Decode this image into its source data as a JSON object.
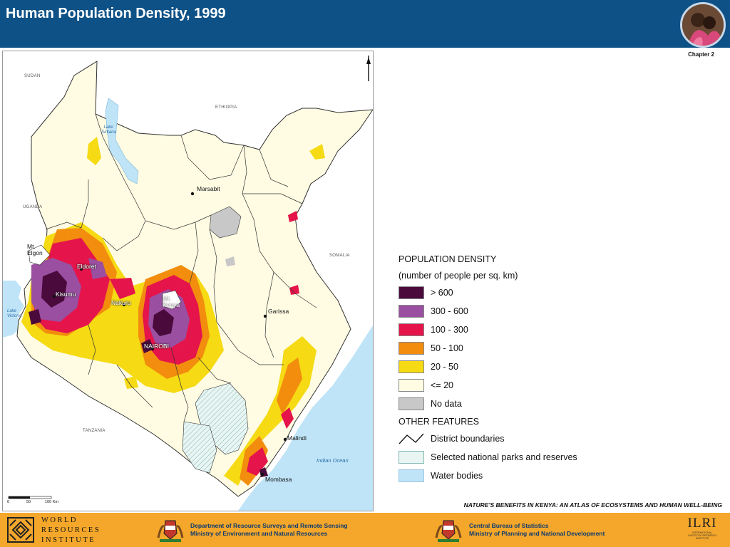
{
  "header": {
    "title": "Human Population Density, 1999",
    "chapter": "Chapter 2"
  },
  "map": {
    "countries": {
      "sudan": "SUDAN",
      "ethiopia": "ETHIOPIA",
      "uganda": "UGANDA",
      "somalia": "SOMALIA",
      "tanzania": "TANZANIA"
    },
    "water": {
      "lake_turkana": "Lake Turkana",
      "lake_victoria": "Lake Victoria",
      "indian_ocean": "Indian Ocean"
    },
    "places": {
      "marsabit": "Marsabit",
      "mt_elgon": "Mt. Elgon",
      "eldoret": "Eldoret",
      "kisumu": "Kisumu",
      "nakuru": "Nakuru",
      "mt_kenya": "Mt. Kenya",
      "nairobi": "NAIROBI",
      "garissa": "Garissa",
      "malindi": "Malindi",
      "mombasa": "Mombasa"
    },
    "scale_bar": {
      "t0": "0",
      "t1": "50",
      "t2": "100 Km"
    },
    "north_arrow": "north-arrow-icon"
  },
  "legend": {
    "title": "POPULATION DENSITY",
    "subtitle": "(number of people per sq. km)",
    "classes": [
      {
        "label": "> 600",
        "color": "#4a0a3c"
      },
      {
        "label": "300 - 600",
        "color": "#9a4fa0"
      },
      {
        "label": "100 - 300",
        "color": "#e5144b"
      },
      {
        "label": "50 - 100",
        "color": "#f28d0e"
      },
      {
        "label": "20 - 50",
        "color": "#f5da14"
      },
      {
        "label": "<= 20",
        "color": "#fffce3"
      },
      {
        "label": "No data",
        "color": "#c8c8c8"
      }
    ],
    "other_title": "OTHER FEATURES",
    "features": [
      {
        "label": "District boundaries",
        "icon": "district-boundary-line-icon"
      },
      {
        "label": "Selected national parks and reserves",
        "color": "#e9f5f3"
      },
      {
        "label": "Water bodies",
        "color": "#bfe4f7"
      }
    ]
  },
  "atlas_title": "NATURE'S BENEFITS IN KENYA: AN ATLAS OF ECOSYSTEMS AND HUMAN WELL-BEING",
  "footer": {
    "wri": [
      "WORLD",
      "RESOURCES",
      "INSTITUTE"
    ],
    "dept1_line1": "Department of Resource Surveys and Remote Sensing",
    "dept1_line2": "Ministry of Environment and Natural Resources",
    "dept2_line1": "Central Bureau of Statistics",
    "dept2_line2": "Ministry of Planning and National Development",
    "ilri": "ILRI",
    "ilri_sub1": "INTERNATIONAL",
    "ilri_sub2": "LIVESTOCK RESEARCH",
    "ilri_sub3": "INSTITUTE"
  },
  "colors": {
    "header_bg": "#0d5186",
    "footer_bg": "#f4a72a"
  }
}
